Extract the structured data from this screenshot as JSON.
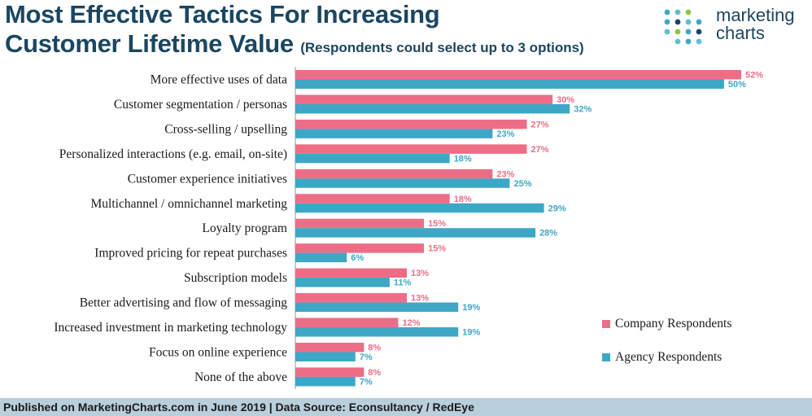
{
  "header": {
    "title_line1": "Most Effective Tactics For Increasing",
    "title_line2": "Customer Lifetime Value",
    "subtitle": "(Respondents could select up to 3 options)"
  },
  "logo": {
    "word1": "marketing",
    "word2": "charts",
    "icon": "dot-grid-icon"
  },
  "colors": {
    "company": "#ee6d86",
    "agency": "#3ea7c6",
    "title": "#1b4661",
    "footer_bg": "#b9cfdc"
  },
  "legend": {
    "company": "Company Respondents",
    "agency": "Agency Respondents"
  },
  "footer": {
    "text": "Published on MarketingCharts.com in June 2019 | Data Source: Econsultancy / RedEye"
  },
  "chart_data": {
    "type": "bar",
    "orientation": "horizontal",
    "title": "Most Effective Tactics For Increasing Customer Lifetime Value",
    "subtitle": "(Respondents could select up to 3 options)",
    "value_suffix": "%",
    "xlim": [
      0,
      52
    ],
    "grid": false,
    "legend_position": "right",
    "categories": [
      "More effective uses of data",
      "Customer segmentation / personas",
      "Cross-selling / upselling",
      "Personalized interactions (e.g. email, on-site)",
      "Customer experience initiatives",
      "Multichannel / omnichannel marketing",
      "Loyalty program",
      "Improved pricing for repeat purchases",
      "Subscription models",
      "Better advertising and flow of messaging",
      "Increased investment in marketing technology",
      "Focus on online experience",
      "None of the above"
    ],
    "series": [
      {
        "name": "Company Respondents",
        "values": [
          52,
          30,
          27,
          27,
          23,
          18,
          15,
          15,
          13,
          13,
          12,
          8,
          8
        ]
      },
      {
        "name": "Agency Respondents",
        "values": [
          50,
          32,
          23,
          18,
          25,
          29,
          28,
          6,
          11,
          19,
          19,
          7,
          7
        ]
      }
    ]
  }
}
